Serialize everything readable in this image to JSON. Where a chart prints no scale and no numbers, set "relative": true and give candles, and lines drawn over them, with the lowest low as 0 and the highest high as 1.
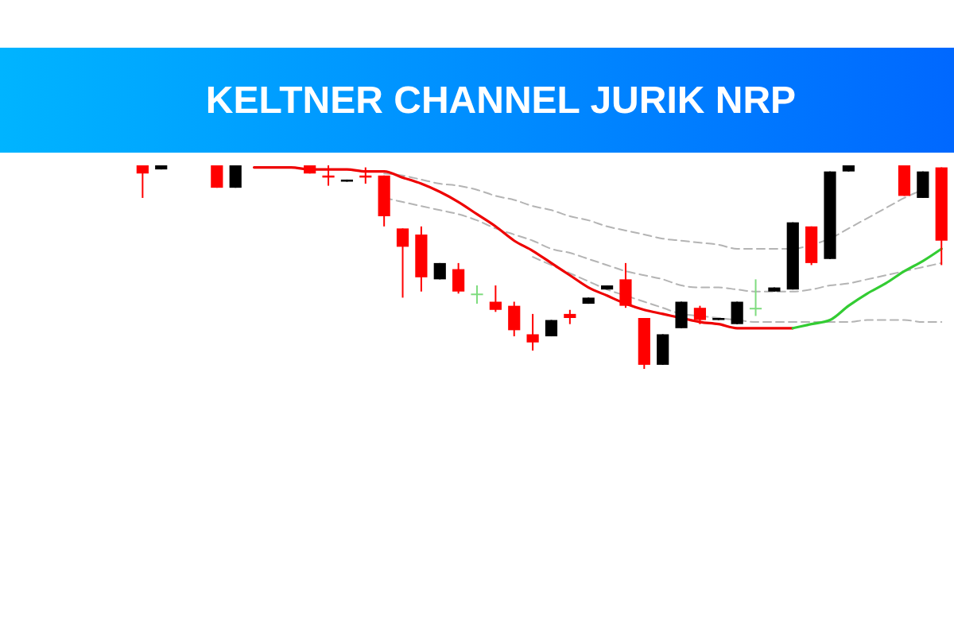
{
  "chart_data": {
    "type": "candlestick",
    "title": "KELTNER CHANNEL JURIK NRP",
    "relative": true,
    "categories": [
      null,
      null,
      null,
      null,
      null,
      null,
      null,
      null,
      null,
      null,
      null,
      null,
      null,
      null,
      null,
      null,
      null,
      null,
      null,
      null,
      null,
      null,
      null,
      null,
      null,
      null,
      null,
      null,
      null,
      null,
      null,
      null,
      null,
      null,
      null,
      null,
      null,
      null,
      null,
      null,
      null,
      null,
      null,
      null,
      null,
      null,
      null,
      null,
      null,
      null,
      null
    ],
    "ohlc": [
      null,
      null,
      null,
      null,
      null,
      null,
      null,
      [
        1,
        1,
        0.84,
        0.96
      ],
      [
        0.98,
        1,
        0.98,
        1
      ],
      null,
      null,
      [
        1,
        1,
        0.89,
        0.89
      ],
      [
        0.89,
        1,
        0.89,
        1
      ],
      null,
      null,
      null,
      [
        1,
        1,
        0.96,
        0.96
      ],
      [
        0.95,
        1,
        0.9,
        0.94
      ],
      [
        0.92,
        0.93,
        0.92,
        0.93
      ],
      [
        0.95,
        0.99,
        0.91,
        0.94
      ],
      [
        0.95,
        0.95,
        0.7,
        0.75
      ],
      [
        0.69,
        0.69,
        0.35,
        0.6
      ],
      [
        0.66,
        0.7,
        0.38,
        0.45
      ],
      [
        0.44,
        0.52,
        0.44,
        0.52
      ],
      [
        0.49,
        0.52,
        0.37,
        0.38
      ],
      [
        0.37,
        0.41,
        0.32,
        0.37
      ],
      [
        0.33,
        0.41,
        0.28,
        0.29
      ],
      [
        0.31,
        0.33,
        0.16,
        0.19
      ],
      [
        0.17,
        0.27,
        0.09,
        0.13
      ],
      [
        0.16,
        0.24,
        0.16,
        0.24
      ],
      [
        0.27,
        0.29,
        0.22,
        0.25
      ],
      [
        0.32,
        0.35,
        0.32,
        0.35
      ],
      [
        0.39,
        0.41,
        0.39,
        0.41
      ],
      [
        0.44,
        0.52,
        0.3,
        0.31
      ],
      [
        0.25,
        0.25,
        0,
        0.02
      ],
      [
        0.02,
        0.17,
        0.02,
        0.17
      ],
      [
        0.2,
        0.33,
        0.2,
        0.33
      ],
      [
        0.3,
        0.31,
        0.22,
        0.24
      ],
      [
        0.24,
        0.25,
        0.24,
        0.25
      ],
      [
        0.22,
        0.33,
        0.22,
        0.33
      ],
      [
        0.3,
        0.44,
        0.26,
        0.3
      ],
      [
        0.38,
        0.4,
        0.38,
        0.4
      ],
      [
        0.39,
        0.72,
        0.39,
        0.72
      ],
      [
        0.7,
        0.7,
        0.51,
        0.52
      ],
      [
        0.54,
        0.97,
        0.54,
        0.97
      ],
      [
        0.97,
        1,
        0.97,
        1
      ],
      null,
      null,
      [
        1,
        1,
        0.85,
        0.85
      ],
      [
        0.84,
        0.97,
        0.84,
        0.97
      ],
      [
        0.99,
        0.99,
        0.51,
        0.63
      ]
    ],
    "colors": [
      null,
      null,
      null,
      null,
      null,
      null,
      null,
      "#ff0000",
      "#000000",
      null,
      null,
      "#ff0000",
      "#000000",
      null,
      null,
      null,
      "#ff0000",
      "#ff0000",
      "#000000",
      "#ff0000",
      "#ff0000",
      "#ff0000",
      "#ff0000",
      "#000000",
      "#ff0000",
      "#7fdc7f",
      "#ff0000",
      "#ff0000",
      "#ff0000",
      "#000000",
      "#ff0000",
      "#000000",
      "#000000",
      "#ff0000",
      "#ff0000",
      "#000000",
      "#000000",
      "#ff0000",
      "#000000",
      "#000000",
      "#7fdc7f",
      "#000000",
      "#000000",
      "#ff0000",
      "#000000",
      "#000000",
      null,
      null,
      "#ff0000",
      "#000000",
      "#ff0000"
    ],
    "series": [
      {
        "type": "line",
        "color": "#b4b4b4",
        "line_style": "dashed",
        "values": [
          null,
          null,
          null,
          null,
          null,
          null,
          null,
          null,
          null,
          null,
          null,
          null,
          null,
          null,
          null,
          null,
          null,
          null,
          null,
          null,
          0.96,
          0.95,
          0.93,
          0.91,
          0.9,
          0.88,
          0.85,
          0.83,
          0.8,
          0.78,
          0.75,
          0.73,
          0.7,
          0.68,
          0.66,
          0.64,
          0.63,
          0.62,
          0.61,
          0.59,
          0.59,
          0.59,
          0.59,
          0.61,
          0.64,
          0.69,
          0.74,
          0.79,
          0.84,
          0.88,
          null
        ]
      },
      {
        "type": "line",
        "color": "#b4b4b4",
        "line_style": "dashed",
        "values": [
          null,
          null,
          null,
          null,
          null,
          null,
          null,
          null,
          null,
          null,
          null,
          null,
          null,
          null,
          null,
          null,
          null,
          null,
          null,
          null,
          0.84,
          0.82,
          0.8,
          0.78,
          0.76,
          0.73,
          0.69,
          0.66,
          0.63,
          0.59,
          0.57,
          0.54,
          0.51,
          0.48,
          0.46,
          0.44,
          0.41,
          0.4,
          0.4,
          0.39,
          0.38,
          0.38,
          0.38,
          0.39,
          0.41,
          0.42,
          0.44,
          0.46,
          0.48,
          0.5,
          0.52
        ]
      },
      {
        "type": "line",
        "color": "#b4b4b4",
        "line_style": "dashed",
        "values": [
          null,
          null,
          null,
          null,
          null,
          null,
          null,
          null,
          null,
          null,
          null,
          null,
          null,
          null,
          null,
          null,
          null,
          null,
          null,
          null,
          null,
          null,
          null,
          null,
          null,
          null,
          null,
          null,
          0.55,
          0.51,
          0.47,
          0.43,
          0.39,
          0.36,
          0.33,
          0.3,
          0.27,
          0.26,
          0.25,
          0.24,
          0.23,
          0.23,
          0.23,
          0.23,
          0.23,
          0.23,
          0.24,
          0.24,
          0.24,
          0.23,
          0.23
        ]
      },
      {
        "type": "line",
        "color": "#ee0000",
        "line_style": "solid",
        "values": [
          null,
          null,
          null,
          null,
          null,
          null,
          null,
          null,
          null,
          null,
          null,
          null,
          null,
          0.99,
          0.99,
          0.99,
          0.98,
          0.98,
          0.98,
          0.97,
          0.97,
          0.94,
          0.91,
          0.87,
          0.82,
          0.76,
          0.7,
          0.63,
          0.58,
          0.52,
          0.46,
          0.4,
          0.36,
          0.32,
          0.29,
          0.27,
          0.25,
          0.23,
          0.22,
          0.2,
          0.2,
          0.2,
          0.2,
          null,
          null,
          null,
          null,
          null,
          null,
          null,
          null
        ]
      },
      {
        "type": "line",
        "color": "#33cc33",
        "line_style": "solid",
        "values": [
          null,
          null,
          null,
          null,
          null,
          null,
          null,
          null,
          null,
          null,
          null,
          null,
          null,
          null,
          null,
          null,
          null,
          null,
          null,
          null,
          null,
          null,
          null,
          null,
          null,
          null,
          null,
          null,
          null,
          null,
          null,
          null,
          null,
          null,
          null,
          null,
          null,
          null,
          null,
          null,
          null,
          null,
          0.2,
          0.22,
          0.24,
          0.31,
          0.37,
          0.42,
          0.48,
          0.53,
          0.59
        ]
      }
    ]
  }
}
